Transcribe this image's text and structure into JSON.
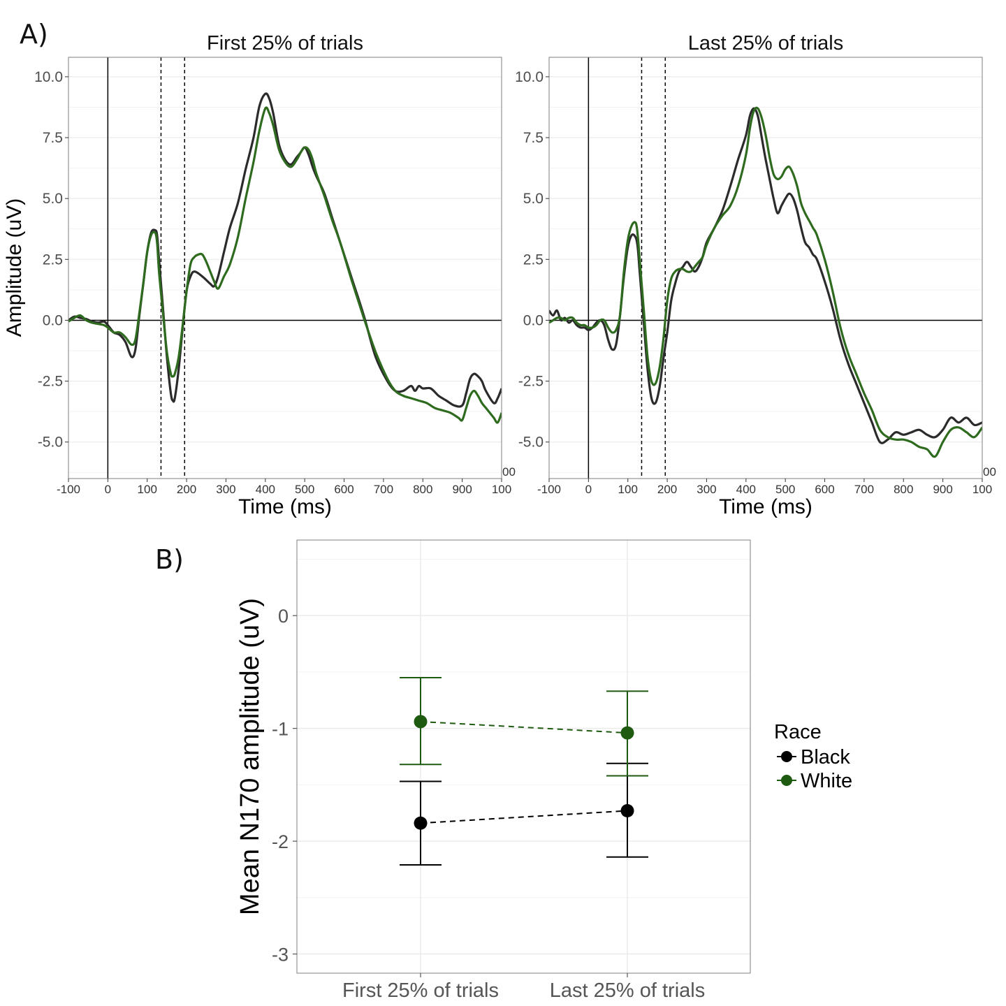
{
  "panel_labels": {
    "a": "A)",
    "b": "B)"
  },
  "colors": {
    "black_series": "#2b2b2b",
    "white_series": "#2e6b1f",
    "white_point": "#1e5a10",
    "grid": "#ebebeb",
    "border": "#7f7f7f"
  },
  "chart_data": [
    {
      "type": "line",
      "title": "First 25% of trials",
      "xlabel": "Time (ms)",
      "ylabel": "Amplitude (uV)",
      "xlim": [
        -100,
        1000
      ],
      "ylim": [
        -6.5,
        10.8
      ],
      "xticks": [
        "-100",
        "0",
        "100",
        "200",
        "300",
        "400",
        "500",
        "600",
        "700",
        "800",
        "900",
        "100"
      ],
      "yticks": [
        "10.0",
        "7.5",
        "5.0",
        "2.5",
        "0.0",
        "-2.5",
        "-5.0"
      ],
      "right_edge_tick": "00",
      "markers": {
        "vertical_solid_at": 0,
        "dashed_window": [
          135,
          195
        ],
        "horizontal_at": 0
      },
      "series": [
        {
          "color": "#2b2b2b",
          "x": [
            -100,
            -85,
            -70,
            -55,
            -40,
            -25,
            -10,
            0,
            15,
            30,
            45,
            60,
            70,
            80,
            90,
            100,
            110,
            120,
            125,
            130,
            140,
            150,
            160,
            165,
            170,
            180,
            190,
            200,
            210,
            220,
            240,
            260,
            270,
            280,
            295,
            310,
            330,
            350,
            370,
            385,
            400,
            410,
            420,
            435,
            450,
            465,
            480,
            490,
            500,
            510,
            520,
            530,
            550,
            570,
            590,
            620,
            650,
            680,
            710,
            730,
            750,
            770,
            780,
            790,
            800,
            820,
            840,
            860,
            880,
            900,
            910,
            920,
            930,
            940,
            950,
            960,
            980,
            990,
            1000
          ],
          "y": [
            0,
            0.15,
            0.1,
            0.05,
            -0.05,
            -0.1,
            -0.05,
            -0.2,
            -0.5,
            -0.6,
            -0.9,
            -1.5,
            -1.2,
            0.2,
            1.5,
            2.8,
            3.6,
            3.7,
            3.5,
            2.5,
            0.5,
            -1.5,
            -3.0,
            -3.3,
            -3.2,
            -2.0,
            -0.3,
            1.2,
            1.8,
            2.0,
            1.8,
            1.5,
            1.4,
            1.8,
            2.8,
            3.8,
            4.8,
            6.2,
            7.5,
            8.8,
            9.3,
            9.1,
            8.5,
            7.2,
            6.6,
            6.4,
            6.7,
            6.9,
            7.1,
            6.8,
            6.3,
            5.9,
            5.2,
            4.2,
            3.2,
            1.7,
            0.2,
            -1.5,
            -2.5,
            -2.9,
            -2.9,
            -2.7,
            -2.9,
            -2.7,
            -2.8,
            -2.8,
            -3.1,
            -3.3,
            -3.5,
            -3.5,
            -3.0,
            -2.4,
            -2.2,
            -2.3,
            -2.5,
            -2.9,
            -3.4,
            -3.2,
            -2.8
          ]
        },
        {
          "color": "#2e6b1f",
          "x": [
            -100,
            -85,
            -70,
            -55,
            -40,
            -25,
            -10,
            0,
            15,
            30,
            45,
            60,
            70,
            80,
            90,
            100,
            110,
            120,
            125,
            130,
            140,
            150,
            160,
            165,
            170,
            180,
            190,
            200,
            210,
            220,
            230,
            240,
            250,
            260,
            270,
            280,
            295,
            310,
            330,
            350,
            370,
            385,
            400,
            410,
            420,
            435,
            450,
            465,
            480,
            490,
            500,
            510,
            520,
            530,
            550,
            570,
            590,
            620,
            650,
            680,
            710,
            730,
            750,
            770,
            790,
            810,
            830,
            850,
            870,
            890,
            900,
            910,
            920,
            930,
            940,
            950,
            960,
            970,
            980,
            990,
            1000
          ],
          "y": [
            -0.05,
            0.1,
            0.2,
            0.0,
            -0.1,
            -0.15,
            -0.2,
            -0.3,
            -0.5,
            -0.5,
            -0.7,
            -1.0,
            -0.8,
            0.3,
            1.5,
            2.8,
            3.5,
            3.6,
            3.2,
            2.0,
            0.3,
            -1.3,
            -2.2,
            -2.3,
            -2.2,
            -1.5,
            -0.2,
            1.2,
            2.3,
            2.6,
            2.7,
            2.7,
            2.4,
            2.0,
            1.6,
            1.3,
            1.8,
            2.3,
            3.4,
            5.0,
            6.5,
            7.8,
            8.7,
            8.5,
            8.0,
            7.0,
            6.5,
            6.3,
            6.6,
            6.9,
            7.1,
            7.0,
            6.6,
            6.0,
            5.1,
            4.1,
            3.2,
            1.6,
            0.1,
            -1.3,
            -2.4,
            -2.9,
            -3.1,
            -3.2,
            -3.3,
            -3.4,
            -3.6,
            -3.7,
            -3.8,
            -4.0,
            -4.1,
            -3.6,
            -3.1,
            -2.9,
            -3.1,
            -3.4,
            -3.6,
            -3.8,
            -4.0,
            -4.2,
            -3.8
          ]
        }
      ]
    },
    {
      "type": "line",
      "title": "Last 25% of trials",
      "xlabel": "Time (ms)",
      "ylabel": "",
      "xlim": [
        -100,
        1000
      ],
      "ylim": [
        -6.5,
        10.8
      ],
      "xticks": [
        "-100",
        "0",
        "100",
        "200",
        "300",
        "400",
        "500",
        "600",
        "700",
        "800",
        "900",
        "100"
      ],
      "yticks": [
        "10.0",
        "7.5",
        "5.0",
        "2.5",
        "0.0",
        "-2.5",
        "-5.0"
      ],
      "right_edge_tick": "00",
      "markers": {
        "vertical_solid_at": 0,
        "dashed_window": [
          135,
          195
        ],
        "horizontal_at": 0
      },
      "series": [
        {
          "color": "#2b2b2b",
          "x": [
            -100,
            -90,
            -80,
            -70,
            -60,
            -50,
            -40,
            -30,
            -20,
            -10,
            0,
            10,
            20,
            30,
            40,
            50,
            60,
            70,
            80,
            90,
            100,
            110,
            120,
            125,
            130,
            140,
            150,
            160,
            170,
            180,
            190,
            200,
            210,
            220,
            230,
            240,
            250,
            260,
            270,
            280,
            290,
            300,
            320,
            340,
            360,
            380,
            400,
            410,
            420,
            430,
            440,
            450,
            460,
            470,
            480,
            490,
            500,
            510,
            520,
            530,
            540,
            550,
            560,
            570,
            580,
            600,
            620,
            640,
            660,
            680,
            700,
            720,
            740,
            760,
            780,
            800,
            820,
            840,
            860,
            880,
            900,
            920,
            940,
            960,
            980,
            1000
          ],
          "y": [
            0.4,
            0.2,
            0.4,
            0.0,
            0.1,
            -0.1,
            0.0,
            -0.2,
            -0.3,
            -0.3,
            -0.4,
            -0.3,
            -0.1,
            0.0,
            -0.2,
            -0.8,
            -1.2,
            -1.0,
            0.2,
            1.8,
            3.0,
            3.5,
            3.4,
            3.0,
            2.0,
            0.0,
            -2.0,
            -3.2,
            -3.4,
            -2.8,
            -1.6,
            -0.5,
            0.8,
            1.5,
            2.0,
            2.2,
            2.4,
            2.2,
            2.0,
            2.2,
            2.6,
            3.2,
            3.8,
            4.5,
            5.5,
            6.6,
            7.6,
            8.4,
            8.7,
            8.4,
            7.5,
            6.6,
            5.8,
            5.0,
            4.4,
            4.7,
            5.0,
            5.2,
            5.0,
            4.5,
            3.8,
            3.2,
            3.0,
            2.7,
            2.5,
            1.6,
            0.5,
            -0.8,
            -1.8,
            -2.6,
            -3.4,
            -4.2,
            -5.0,
            -4.9,
            -4.6,
            -4.7,
            -4.6,
            -4.5,
            -4.7,
            -4.8,
            -4.5,
            -4.0,
            -4.2,
            -4.0,
            -4.3,
            -4.2
          ]
        },
        {
          "color": "#2e6b1f",
          "x": [
            -100,
            -90,
            -80,
            -70,
            -60,
            -50,
            -40,
            -30,
            -20,
            -10,
            0,
            10,
            20,
            30,
            40,
            50,
            60,
            70,
            80,
            90,
            100,
            110,
            120,
            125,
            130,
            140,
            150,
            160,
            170,
            180,
            190,
            200,
            210,
            220,
            230,
            240,
            250,
            260,
            270,
            280,
            290,
            300,
            320,
            340,
            360,
            380,
            400,
            410,
            420,
            430,
            440,
            450,
            460,
            470,
            480,
            490,
            500,
            510,
            520,
            530,
            540,
            550,
            560,
            570,
            580,
            600,
            620,
            640,
            660,
            680,
            700,
            720,
            740,
            760,
            780,
            800,
            820,
            840,
            860,
            880,
            900,
            920,
            940,
            960,
            980,
            1000
          ],
          "y": [
            -0.1,
            0.0,
            0.1,
            0.1,
            0.0,
            0.1,
            0.1,
            -0.1,
            -0.2,
            -0.2,
            -0.3,
            -0.3,
            -0.2,
            0.0,
            0.0,
            -0.3,
            -0.5,
            -0.4,
            0.2,
            2.0,
            3.3,
            3.9,
            4.0,
            3.5,
            2.5,
            0.5,
            -1.5,
            -2.5,
            -2.6,
            -2.0,
            -0.8,
            0.8,
            1.7,
            2.0,
            2.1,
            2.1,
            2.0,
            2.0,
            2.2,
            2.4,
            2.6,
            3.1,
            3.8,
            4.3,
            4.7,
            5.5,
            6.8,
            7.9,
            8.6,
            8.7,
            8.3,
            7.6,
            6.7,
            6.0,
            5.8,
            5.9,
            6.2,
            6.3,
            6.0,
            5.5,
            4.8,
            4.4,
            4.1,
            3.8,
            3.5,
            2.5,
            1.2,
            -0.3,
            -1.4,
            -2.2,
            -3.0,
            -3.7,
            -4.5,
            -4.8,
            -4.9,
            -4.9,
            -5.0,
            -5.2,
            -5.3,
            -5.6,
            -5.0,
            -4.5,
            -4.4,
            -4.6,
            -4.8,
            -4.4
          ]
        }
      ]
    },
    {
      "type": "scatter",
      "title": "",
      "xlabel": "",
      "ylabel": "Mean N170 amplitude (uV)",
      "categories": [
        "First 25% of trials",
        "Last 25% of trials"
      ],
      "ylim": [
        -3.17,
        0.67
      ],
      "yticks": [
        "0",
        "-1",
        "-2",
        "-3"
      ],
      "legend": {
        "title": "Race",
        "position": "right"
      },
      "series": [
        {
          "name": "Black",
          "color": "#000000",
          "values": [
            -1.84,
            -1.73
          ],
          "ci_low": [
            -2.21,
            -2.14
          ],
          "ci_high": [
            -1.47,
            -1.31
          ]
        },
        {
          "name": "White",
          "color": "#1e5a10",
          "values": [
            -0.94,
            -1.04
          ],
          "ci_low": [
            -1.32,
            -1.42
          ],
          "ci_high": [
            -0.55,
            -0.67
          ]
        }
      ]
    }
  ]
}
